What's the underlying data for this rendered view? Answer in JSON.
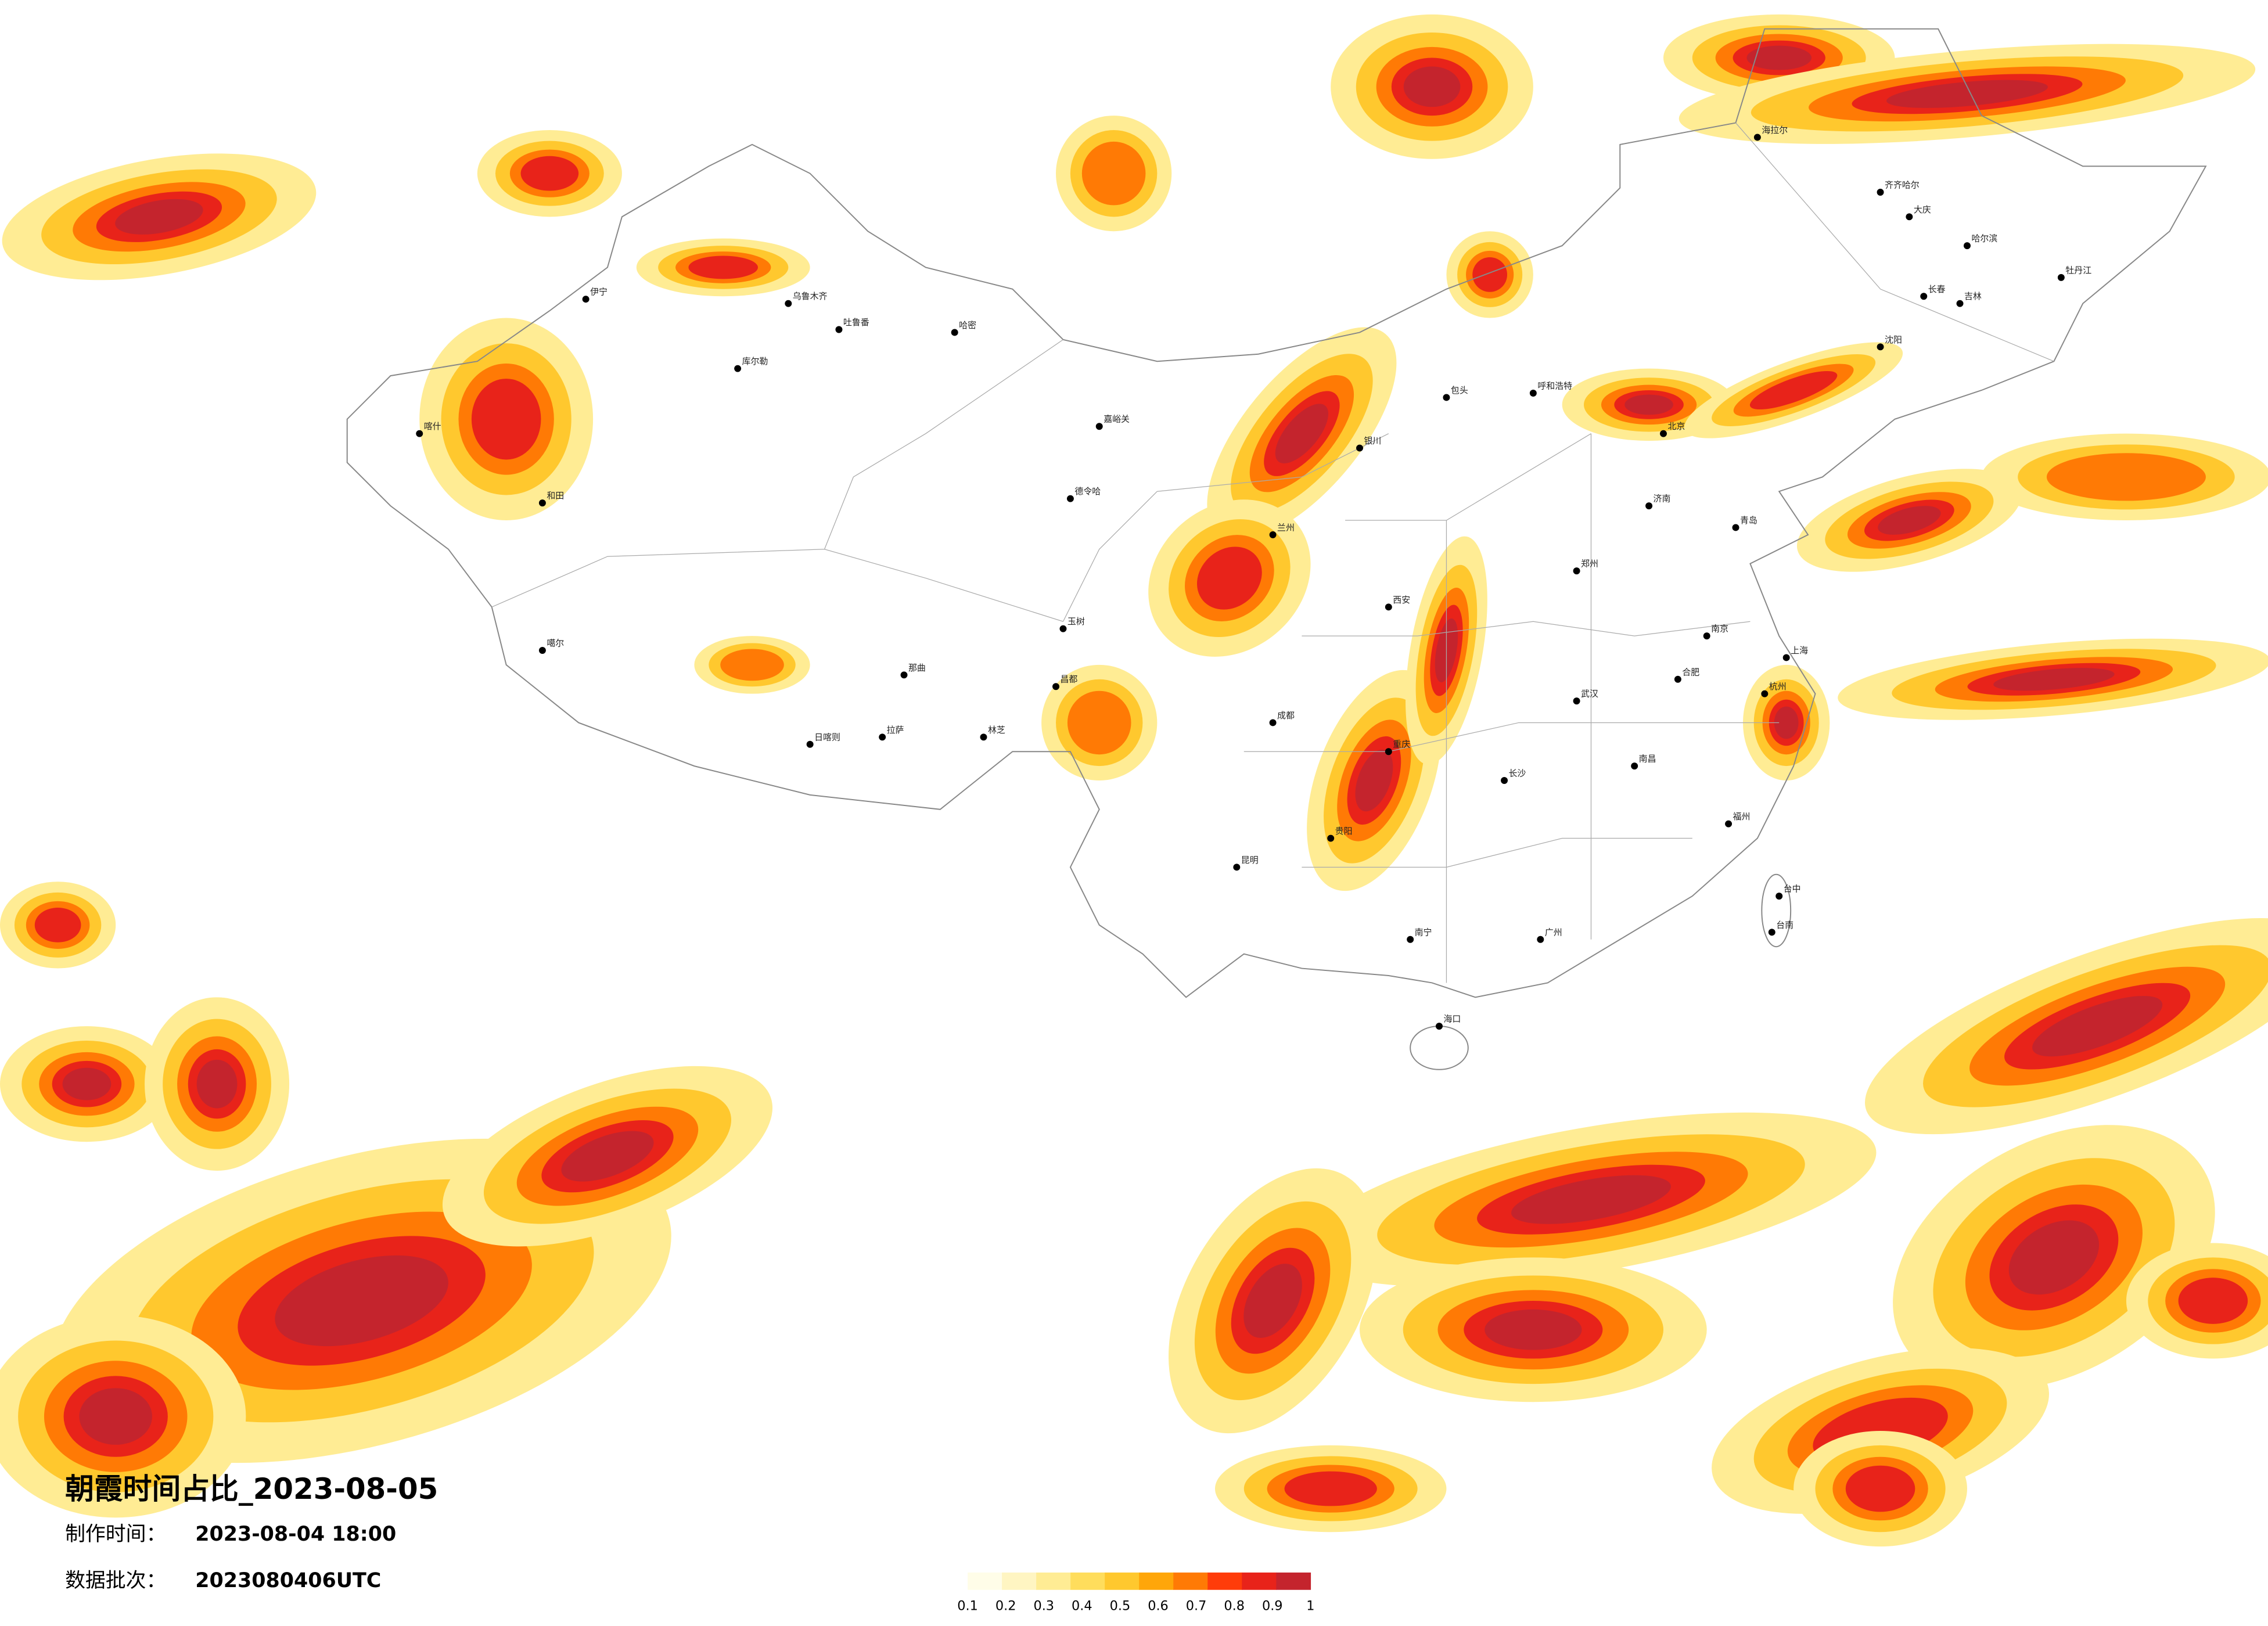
{
  "title": "朝霞时间占比_2023-08-05",
  "made_label": "制作时间：",
  "made_value": "2023-08-04 18:00",
  "batch_label": "数据批次：",
  "batch_value": "2023080406UTC",
  "legend": {
    "colors": [
      "#fffde8",
      "#fff5c2",
      "#ffec94",
      "#ffdd5c",
      "#ffc82e",
      "#ffa60a",
      "#ff7a05",
      "#ff3c0a",
      "#e8231a",
      "#c4242d"
    ],
    "labels": [
      0.1,
      0.2,
      0.3,
      0.4,
      0.5,
      0.6,
      0.7,
      0.8,
      0.9,
      1
    ]
  },
  "cities": [
    "伊宁",
    "乌鲁木齐",
    "吐鲁番",
    "哈密",
    "库尔勒",
    "喀什",
    "和田",
    "嘉峪关",
    "德令哈",
    "噶尔",
    "日喀则",
    "拉萨",
    "林芝",
    "那曲",
    "昌都",
    "玉树",
    "呼和浩特",
    "北京",
    "包头",
    "银川",
    "兰州",
    "西安",
    "郑州",
    "成都",
    "重庆",
    "贵阳",
    "昆明",
    "南宁",
    "广州",
    "长沙",
    "武汉",
    "南京",
    "上海",
    "杭州",
    "福州",
    "台中",
    "台南",
    "海口",
    "哈尔滨",
    "长春",
    "沈阳",
    "济南",
    "青岛",
    "齐齐哈尔",
    "大庆",
    "吉林",
    "牡丹江",
    "海拉尔",
    "南昌",
    "合肥"
  ]
}
